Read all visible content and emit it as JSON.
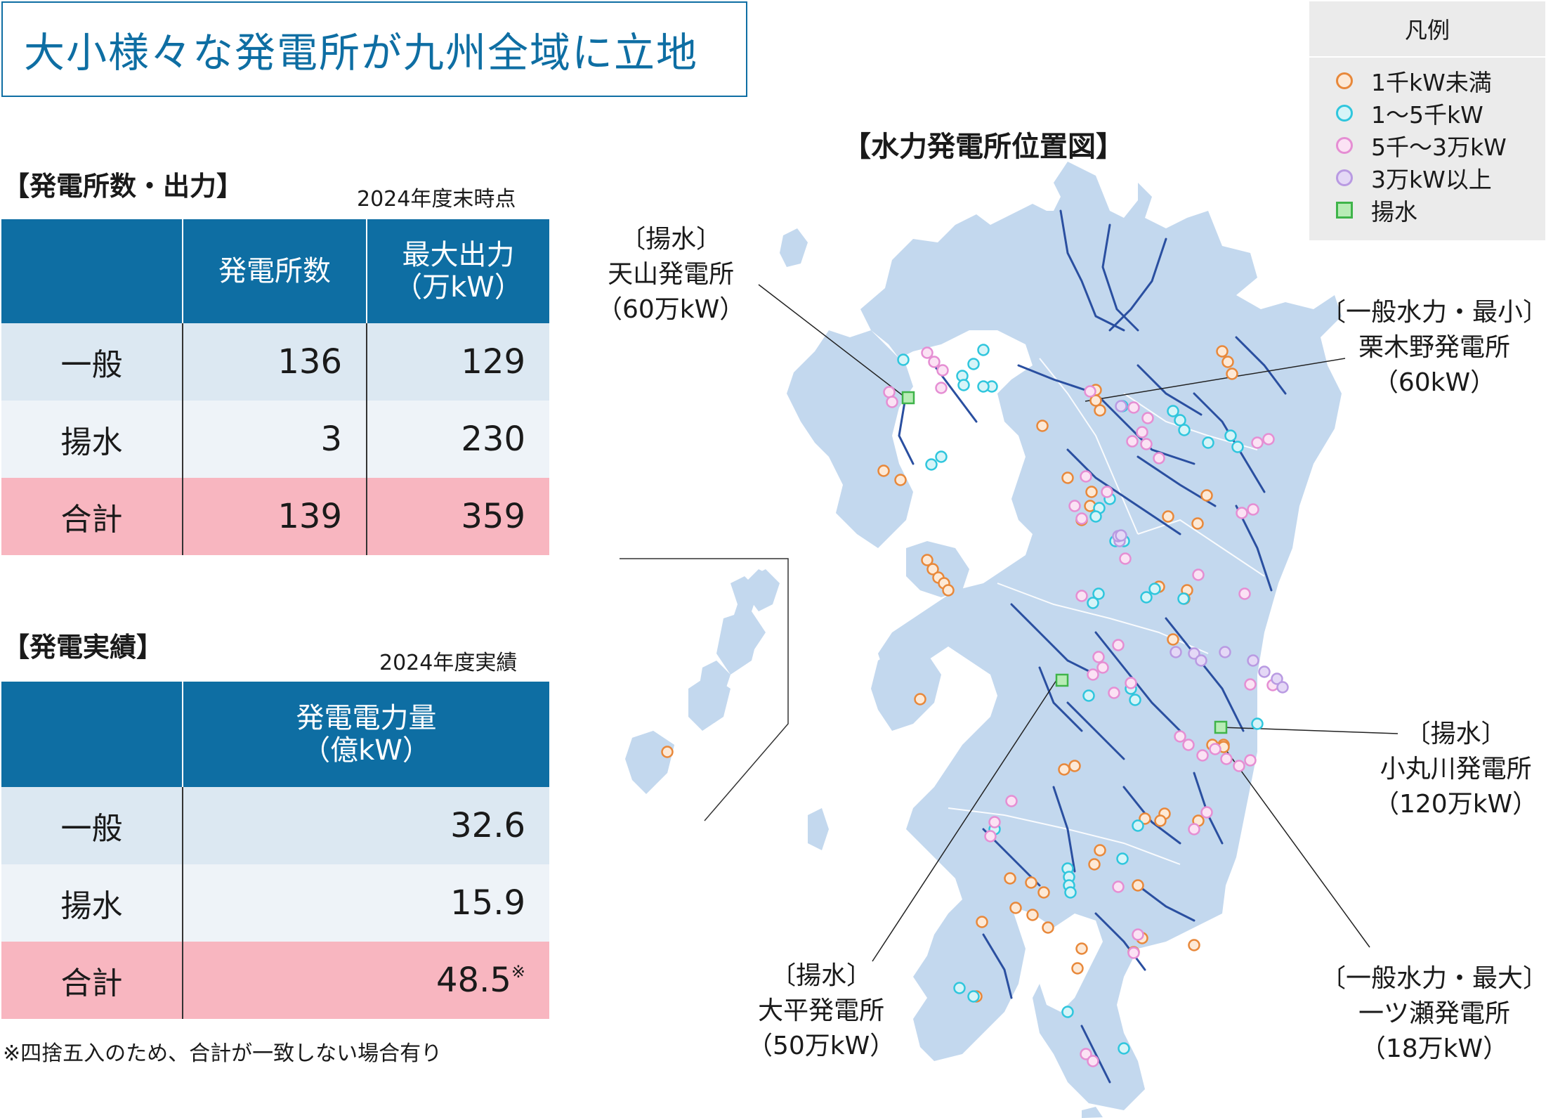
{
  "headline": "大小様々な発電所が九州全域に立地",
  "capacity": {
    "title": "【発電所数・出力】",
    "note": "2024年度末時点",
    "headers": [
      "",
      "発電所数",
      "最大出力\n（万kW）"
    ],
    "rows": [
      {
        "label": "一般",
        "count": "136",
        "output": "129"
      },
      {
        "label": "揚水",
        "count": "3",
        "output": "230"
      },
      {
        "label": "合計",
        "count": "139",
        "output": "359"
      }
    ]
  },
  "generation": {
    "title": "【発電実績】",
    "note": "2024年度実績",
    "header": "発電電力量\n（億kW）",
    "rows": [
      {
        "label": "一般",
        "value": "32.6"
      },
      {
        "label": "揚水",
        "value": "15.9"
      },
      {
        "label": "合計",
        "value": "48.5",
        "mark": "※"
      }
    ],
    "footnote": "※四捨五入のため、合計が一致しない場合有り"
  },
  "map": {
    "title": "【水力発電所位置図】",
    "callouts": {
      "amayama": [
        "〔揚水〕",
        "天山発電所",
        "（60万kW）"
      ],
      "kurikino": [
        "〔一般水力・最小〕",
        "栗木野発電所",
        "（60kW）"
      ],
      "komarugawa": [
        "〔揚水〕",
        "小丸川発電所",
        "（120万kW）"
      ],
      "ohira": [
        "〔揚水〕",
        "大平発電所",
        "（50万kW）"
      ],
      "hitotsuse": [
        "〔一般水力・最大〕",
        "一ツ瀬発電所",
        "（18万kW）"
      ]
    }
  },
  "legend": {
    "title": "凡例",
    "items": [
      {
        "label": "1千kW未満",
        "shape": "circle",
        "stroke": "#e8883a",
        "fill": "#fde9d6"
      },
      {
        "label": "1～5千kW",
        "shape": "circle",
        "stroke": "#2fc6dd",
        "fill": "#d6f4f8"
      },
      {
        "label": "5千～3万kW",
        "shape": "circle",
        "stroke": "#e58ed3",
        "fill": "#fbe2f4"
      },
      {
        "label": "3万kW以上",
        "shape": "circle",
        "stroke": "#b99ae2",
        "fill": "#e4d8f6"
      },
      {
        "label": "揚水",
        "shape": "square",
        "stroke": "#3fb44a",
        "fill": "#b8ecb6"
      }
    ]
  },
  "colors": {
    "accent": "#0e6ea3",
    "land": "#c3d8ee",
    "river": "#2a4fa0",
    "total_row": "#f8b6c0"
  }
}
